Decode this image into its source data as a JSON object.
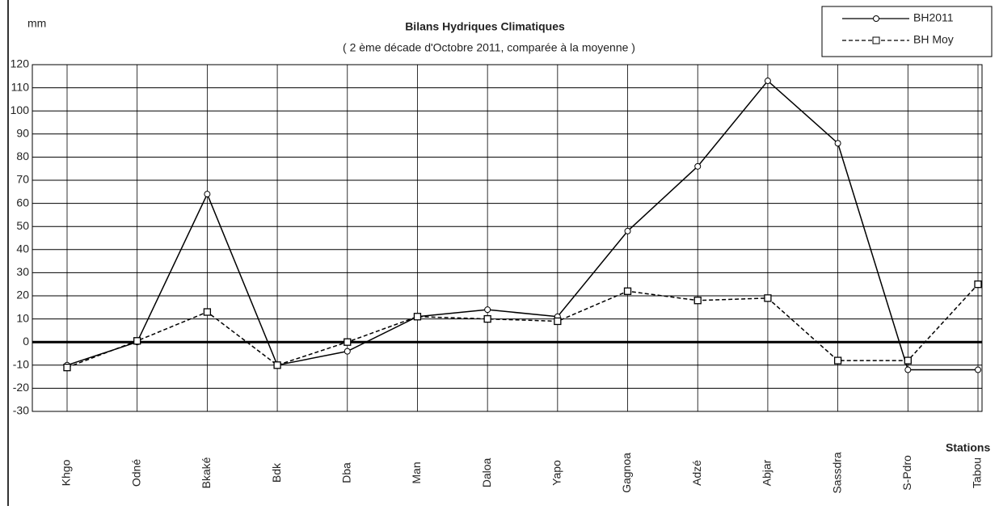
{
  "chart_data": {
    "type": "line",
    "title": "Bilans Hydriques Climatiques",
    "subtitle": "( 2 ème décade d'Octobre  2011, comparée à la moyenne )",
    "y_label": "mm",
    "x_label": "Stations",
    "categories": [
      "Khgo",
      "Odné",
      "Bkaké",
      "Bdk",
      "Dba",
      "Man",
      "Daloa",
      "Yapo",
      "Gagnoa",
      "Adzé",
      "Abjar",
      "Sassdra",
      "S-Pdro",
      "Tabou"
    ],
    "series": [
      {
        "name": "BH2011",
        "color": "#000000",
        "dash": false,
        "marker": "circle",
        "values": [
          -10,
          0,
          64,
          -10,
          -4,
          11,
          14,
          11,
          48,
          76,
          113,
          86,
          -12,
          -12
        ]
      },
      {
        "name": "BH Moy",
        "color": "#000000",
        "dash": true,
        "marker": "square",
        "values": [
          -11,
          0.5,
          13,
          -10,
          0,
          11,
          10,
          9,
          22,
          18,
          19,
          -8,
          -8,
          25
        ]
      }
    ],
    "ylim": [
      -30,
      120
    ],
    "yticks": [
      -30,
      -20,
      -10,
      0,
      10,
      20,
      30,
      40,
      50,
      60,
      70,
      80,
      90,
      100,
      110,
      120
    ],
    "grid": true,
    "legend": "top-right"
  }
}
